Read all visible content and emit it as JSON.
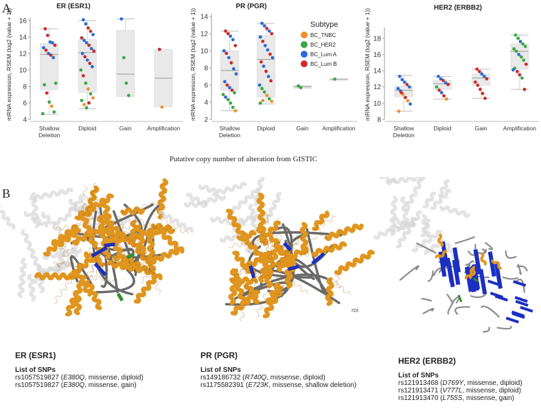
{
  "panel_a_label": "A",
  "panel_b_label": "B",
  "legend": {
    "title": "Subtype",
    "items": [
      {
        "label": "BC_TNBC",
        "color": "#f28e2b"
      },
      {
        "label": "BC_HER2",
        "color": "#3aa845"
      },
      {
        "label": "BC_Lum A",
        "color": "#2b6bd6"
      },
      {
        "label": "BC_Lum B",
        "color": "#cc2a2a"
      }
    ]
  },
  "x_axis_title": "Putative copy number of  alteration from GISTIC",
  "chart_data": [
    {
      "type": "box+scatter",
      "title": "ER (ESR1)",
      "ylabel": "mRNA expression, RSEM  (log2  (value + 1))",
      "ylim": [
        4,
        16
      ],
      "yticks": [
        4,
        6,
        8,
        10,
        12,
        14,
        16
      ],
      "categories": [
        "Shallow Deletion",
        "Diploid",
        "Gain",
        "Amplification"
      ],
      "boxes": [
        {
          "min": 4.6,
          "q1": 7.6,
          "median": 11.9,
          "q3": 13.2,
          "max": 15.0
        },
        {
          "min": 5.3,
          "q1": 7.3,
          "median": 12.1,
          "q3": 13.7,
          "max": 16.0
        },
        {
          "min": 6.8,
          "q1": 6.8,
          "median": 9.5,
          "q3": 14.8,
          "max": 16.2
        },
        {
          "min": 5.5,
          "q1": 5.5,
          "median": 9.0,
          "q3": 12.5,
          "max": 12.5
        }
      ],
      "points": [
        [
          0,
          15.0,
          "lumb"
        ],
        [
          0,
          14.2,
          "lumb"
        ],
        [
          0,
          13.4,
          "luma"
        ],
        [
          0,
          13.3,
          "luma"
        ],
        [
          0,
          13.0,
          "lumb"
        ],
        [
          0,
          12.7,
          "luma"
        ],
        [
          0,
          12.4,
          "lumb"
        ],
        [
          0,
          12.0,
          "luma"
        ],
        [
          0,
          11.8,
          "lumb"
        ],
        [
          0,
          11.5,
          "luma"
        ],
        [
          0,
          8.4,
          "her2"
        ],
        [
          0,
          8.2,
          "her2"
        ],
        [
          0,
          7.2,
          "lumb"
        ],
        [
          0,
          6.1,
          "her2"
        ],
        [
          0,
          5.6,
          "tnbc"
        ],
        [
          0,
          4.9,
          "her2"
        ],
        [
          0,
          4.7,
          "her2"
        ],
        [
          1,
          16.1,
          "luma"
        ],
        [
          1,
          15.6,
          "luma"
        ],
        [
          1,
          15.1,
          "lumb"
        ],
        [
          1,
          14.7,
          "lumb"
        ],
        [
          1,
          14.3,
          "luma"
        ],
        [
          1,
          13.9,
          "lumb"
        ],
        [
          1,
          13.6,
          "luma"
        ],
        [
          1,
          13.3,
          "luma"
        ],
        [
          1,
          13.0,
          "lumb"
        ],
        [
          1,
          12.6,
          "luma"
        ],
        [
          1,
          12.3,
          "lumb"
        ],
        [
          1,
          12.0,
          "luma"
        ],
        [
          1,
          11.6,
          "lumb"
        ],
        [
          1,
          11.2,
          "luma"
        ],
        [
          1,
          10.8,
          "lumb"
        ],
        [
          1,
          10.4,
          "luma"
        ],
        [
          1,
          10.0,
          "her2"
        ],
        [
          1,
          9.3,
          "lumb"
        ],
        [
          1,
          8.4,
          "her2"
        ],
        [
          1,
          7.7,
          "tnbc"
        ],
        [
          1,
          7.1,
          "her2"
        ],
        [
          1,
          6.6,
          "tnbc"
        ],
        [
          1,
          6.3,
          "her2"
        ],
        [
          1,
          5.8,
          "tnbc"
        ],
        [
          1,
          5.4,
          "her2"
        ],
        [
          1,
          6.0,
          "lumb"
        ],
        [
          2,
          16.2,
          "luma"
        ],
        [
          2,
          11.5,
          "her2"
        ],
        [
          2,
          8.4,
          "her2"
        ],
        [
          2,
          6.9,
          "her2"
        ],
        [
          3,
          12.5,
          "lumb"
        ],
        [
          3,
          5.5,
          "tnbc"
        ]
      ]
    },
    {
      "type": "box+scatter",
      "title": "PR (PGR)",
      "ylabel": "mRNA expression, RSEM  (log2  (value + 1))",
      "ylim": [
        2,
        14
      ],
      "yticks": [
        2,
        4,
        6,
        8,
        10,
        12,
        14
      ],
      "categories": [
        "Shallow Deletion",
        "Diploid",
        "Gain",
        "Amplification"
      ],
      "boxes": [
        {
          "min": 3.0,
          "q1": 5.4,
          "median": 7.7,
          "q3": 10.0,
          "max": 12.3
        },
        {
          "min": 3.8,
          "q1": 4.6,
          "median": 9.0,
          "q3": 11.8,
          "max": 13.2
        },
        {
          "min": 5.6,
          "q1": 5.6,
          "median": 5.8,
          "q3": 5.95,
          "max": 5.95
        },
        {
          "min": 6.7,
          "q1": 6.7,
          "median": 6.7,
          "q3": 6.7,
          "max": 6.7
        }
      ],
      "points": [
        [
          0,
          12.3,
          "lumb"
        ],
        [
          0,
          12.0,
          "lumb"
        ],
        [
          0,
          11.7,
          "luma"
        ],
        [
          0,
          11.3,
          "luma"
        ],
        [
          0,
          10.6,
          "lumb"
        ],
        [
          0,
          10.0,
          "luma"
        ],
        [
          0,
          9.7,
          "lumb"
        ],
        [
          0,
          9.2,
          "luma"
        ],
        [
          0,
          8.6,
          "lumb"
        ],
        [
          0,
          7.9,
          "luma"
        ],
        [
          0,
          7.3,
          "luma"
        ],
        [
          0,
          6.4,
          "luma"
        ],
        [
          0,
          6.0,
          "lumb"
        ],
        [
          0,
          5.7,
          "luma"
        ],
        [
          0,
          5.4,
          "lumb"
        ],
        [
          0,
          5.1,
          "her2"
        ],
        [
          0,
          4.9,
          "her2"
        ],
        [
          0,
          4.6,
          "luma"
        ],
        [
          0,
          4.3,
          "her2"
        ],
        [
          0,
          3.9,
          "her2"
        ],
        [
          0,
          3.4,
          "her2"
        ],
        [
          0,
          3.0,
          "tnbc"
        ],
        [
          1,
          13.2,
          "luma"
        ],
        [
          1,
          12.9,
          "luma"
        ],
        [
          1,
          12.6,
          "lumb"
        ],
        [
          1,
          12.3,
          "luma"
        ],
        [
          1,
          12.0,
          "lumb"
        ],
        [
          1,
          11.6,
          "luma"
        ],
        [
          1,
          11.1,
          "lumb"
        ],
        [
          1,
          10.6,
          "luma"
        ],
        [
          1,
          10.1,
          "luma"
        ],
        [
          1,
          9.6,
          "lumb"
        ],
        [
          1,
          9.2,
          "luma"
        ],
        [
          1,
          8.7,
          "lumb"
        ],
        [
          1,
          8.2,
          "luma"
        ],
        [
          1,
          7.6,
          "lumb"
        ],
        [
          1,
          7.0,
          "luma"
        ],
        [
          1,
          6.5,
          "lumb"
        ],
        [
          1,
          6.0,
          "luma"
        ],
        [
          1,
          5.6,
          "her2"
        ],
        [
          1,
          5.2,
          "her2"
        ],
        [
          1,
          4.8,
          "tnbc"
        ],
        [
          1,
          4.4,
          "her2"
        ],
        [
          1,
          4.1,
          "tnbc"
        ],
        [
          1,
          3.9,
          "her2"
        ],
        [
          1,
          4.2,
          "tnbc"
        ],
        [
          2,
          5.9,
          "her2"
        ],
        [
          2,
          5.7,
          "her2"
        ],
        [
          3,
          6.7,
          "her2"
        ]
      ]
    },
    {
      "type": "box+scatter",
      "title": "HER2 (ERBB2)",
      "ylabel": "mRNA expression, RSEM  (log2  (value + 1))",
      "ylim": [
        8,
        19
      ],
      "yticks": [
        8,
        10,
        12,
        14,
        16,
        18
      ],
      "categories": [
        "Shallow Deletion",
        "Diploid",
        "Gain",
        "Amplification"
      ],
      "boxes": [
        {
          "min": 9.0,
          "q1": 10.8,
          "median": 11.6,
          "q3": 12.1,
          "max": 13.4
        },
        {
          "min": 10.5,
          "q1": 11.7,
          "median": 12.4,
          "q3": 12.8,
          "max": 13.3
        },
        {
          "min": 10.6,
          "q1": 12.2,
          "median": 13.1,
          "q3": 13.6,
          "max": 14.2
        },
        {
          "min": 11.7,
          "q1": 14.2,
          "median": 16.4,
          "q3": 17.3,
          "max": 18.4
        }
      ],
      "points": [
        [
          0,
          13.3,
          "luma"
        ],
        [
          0,
          12.9,
          "luma"
        ],
        [
          0,
          12.6,
          "luma"
        ],
        [
          0,
          12.3,
          "lumb"
        ],
        [
          0,
          12.0,
          "luma"
        ],
        [
          0,
          11.8,
          "luma"
        ],
        [
          0,
          11.5,
          "luma"
        ],
        [
          0,
          11.1,
          "tnbc"
        ],
        [
          0,
          10.7,
          "lumb"
        ],
        [
          0,
          10.3,
          "tnbc"
        ],
        [
          0,
          9.9,
          "luma"
        ],
        [
          0,
          9.0,
          "tnbc"
        ],
        [
          0,
          11.3,
          "lumb"
        ],
        [
          1,
          13.3,
          "luma"
        ],
        [
          1,
          13.0,
          "luma"
        ],
        [
          1,
          12.8,
          "lumb"
        ],
        [
          1,
          12.5,
          "luma"
        ],
        [
          1,
          12.3,
          "lumb"
        ],
        [
          1,
          12.0,
          "her2"
        ],
        [
          1,
          11.6,
          "lumb"
        ],
        [
          1,
          11.3,
          "luma"
        ],
        [
          1,
          10.9,
          "lumb"
        ],
        [
          1,
          10.5,
          "tnbc"
        ],
        [
          2,
          14.2,
          "lumb"
        ],
        [
          2,
          13.9,
          "lumb"
        ],
        [
          2,
          13.6,
          "luma"
        ],
        [
          2,
          13.3,
          "luma"
        ],
        [
          2,
          13.0,
          "lumb"
        ],
        [
          2,
          12.6,
          "lumb"
        ],
        [
          2,
          12.2,
          "lumb"
        ],
        [
          2,
          11.7,
          "lumb"
        ],
        [
          2,
          11.2,
          "lumb"
        ],
        [
          2,
          10.6,
          "lumb"
        ],
        [
          3,
          18.4,
          "her2"
        ],
        [
          3,
          18.0,
          "her2"
        ],
        [
          3,
          17.6,
          "luma"
        ],
        [
          3,
          17.3,
          "her2"
        ],
        [
          3,
          17.0,
          "her2"
        ],
        [
          3,
          16.7,
          "her2"
        ],
        [
          3,
          16.4,
          "her2"
        ],
        [
          3,
          16.0,
          "luma"
        ],
        [
          3,
          15.7,
          "her2"
        ],
        [
          3,
          15.3,
          "her2"
        ],
        [
          3,
          14.8,
          "lumb"
        ],
        [
          3,
          14.3,
          "her2"
        ],
        [
          3,
          13.9,
          "lumb"
        ],
        [
          3,
          13.5,
          "lumb"
        ],
        [
          3,
          13.1,
          "her2"
        ],
        [
          3,
          11.7,
          "lumb"
        ],
        [
          3,
          14.1,
          "luma"
        ]
      ]
    }
  ],
  "structures": [
    {
      "name": "ER (ESR1)",
      "list_title": "List of SNPs",
      "snps": [
        {
          "id": "rs1057519827",
          "mut": "E380Q",
          "rest": ", missense,  diploid)"
        },
        {
          "id": "rs1057519827",
          "mut": "E380Q",
          "rest": ", missense,  gain)"
        }
      ]
    },
    {
      "name": "PR (PGR)",
      "list_title": "List of SNPs",
      "snps": [
        {
          "id": "rs149186732",
          "mut": "R740Q",
          "rest": ", missense,  diploid)"
        },
        {
          "id": "rs1175582391",
          "mut": "E723K",
          "rest": ", missense,  shallow deletion)"
        }
      ]
    },
    {
      "name": "HER2 (ERBB2)",
      "list_title": "List of SNPs",
      "snps": [
        {
          "id": "rs121913468",
          "mut": "D769Y",
          "rest": ", missense,  diploid)"
        },
        {
          "id": "rs121913471",
          "mut": "V777L",
          "rest": ", missense,  diploid)"
        },
        {
          "id": "rs121913470",
          "mut": "L755S",
          "rest": ", missense,  gain)"
        }
      ]
    }
  ],
  "stray_text": "roi",
  "colors": {
    "tnbc": "#f28e2b",
    "her2": "#3aa845",
    "luma": "#2b6bd6",
    "lumb": "#cc2a2a",
    "helix": "#e0951e",
    "sheet": "#1b2fc2",
    "coil": "#6a6a6a",
    "mutation": "#2f8f2f"
  }
}
